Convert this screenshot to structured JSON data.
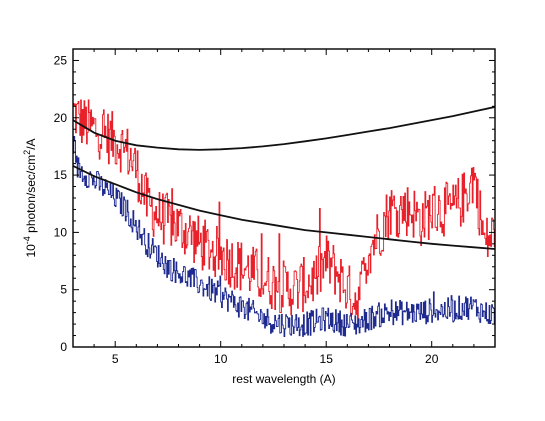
{
  "chart_data": {
    "type": "line",
    "title": "",
    "xlabel": "rest wavelength (A)",
    "ylabel": {
      "prefix": "10",
      "exp": "-4",
      "middle": " photon/sec/cm",
      "exp2": "2",
      "suffix": "/A"
    },
    "xlim": [
      3,
      23
    ],
    "ylim": [
      0,
      26
    ],
    "xticks": [
      5,
      10,
      15,
      20
    ],
    "yticks": [
      0,
      5,
      10,
      15,
      20,
      25
    ],
    "grid": false,
    "legend": "none",
    "series": [
      {
        "color": "#e8202a",
        "style": "step-noisy",
        "x": [
          3,
          3.5,
          4,
          4.5,
          5,
          5.5,
          6,
          6.5,
          7,
          7.5,
          8,
          8.5,
          9,
          9.5,
          10,
          10.5,
          11,
          11.5,
          12,
          12.5,
          13,
          13.5,
          14,
          14.5,
          15,
          15.5,
          16,
          16.5,
          17,
          17.5,
          18,
          18.5,
          19,
          19.5,
          20,
          20.5,
          21,
          21.5,
          22,
          22.5,
          23
        ],
        "y": [
          20.5,
          19.5,
          19,
          18.5,
          18,
          17.2,
          15.5,
          12.5,
          11.5,
          11,
          10.5,
          10,
          9,
          8.5,
          8,
          7.5,
          7,
          6.5,
          6,
          5.5,
          5.2,
          5,
          5.5,
          6,
          7.5,
          6.5,
          5,
          4,
          8.5,
          10,
          12,
          12,
          12,
          11,
          12,
          12,
          12,
          13,
          15,
          9,
          10
        ],
        "noise": 2.4
      },
      {
        "color": "#1f2a8f",
        "style": "step-noisy",
        "x": [
          3,
          3.5,
          4,
          4.5,
          5,
          5.5,
          6,
          6.5,
          7,
          7.5,
          8,
          8.5,
          9,
          9.5,
          10,
          10.5,
          11,
          11.5,
          12,
          12.5,
          13,
          13.5,
          14,
          14.5,
          15,
          15.5,
          16,
          16.5,
          17,
          17.5,
          18,
          18.5,
          19,
          19.5,
          20,
          20.5,
          21,
          21.5,
          22,
          22.5,
          23
        ],
        "y": [
          16,
          15.2,
          14.5,
          13.8,
          13,
          12,
          10.5,
          9,
          8,
          7,
          6.5,
          6,
          5.5,
          5,
          4.5,
          4,
          3.5,
          3,
          2.5,
          2.2,
          2,
          2,
          2,
          2.2,
          2.5,
          2.2,
          2,
          2,
          2.5,
          2.8,
          3,
          3,
          3,
          3,
          3.2,
          3.2,
          3.2,
          3.5,
          3.5,
          3,
          2.8
        ],
        "noise": 1.1
      },
      {
        "color": "#111111",
        "style": "smooth",
        "x": [
          3,
          4,
          5,
          6,
          7,
          8,
          9,
          10,
          11,
          12,
          13,
          14,
          15,
          16,
          17,
          18,
          19,
          20,
          21,
          22,
          23
        ],
        "y": [
          19.8,
          18.7,
          18.0,
          17.6,
          17.4,
          17.25,
          17.2,
          17.25,
          17.35,
          17.5,
          17.7,
          17.95,
          18.2,
          18.5,
          18.8,
          19.1,
          19.45,
          19.8,
          20.15,
          20.55,
          20.95
        ]
      },
      {
        "color": "#111111",
        "style": "smooth",
        "x": [
          3,
          4,
          5,
          6,
          7,
          8,
          9,
          10,
          11,
          12,
          13,
          14,
          15,
          16,
          17,
          18,
          19,
          20,
          21,
          22,
          23
        ],
        "y": [
          15.8,
          14.9,
          14.2,
          13.5,
          12.9,
          12.4,
          11.9,
          11.5,
          11.1,
          10.8,
          10.5,
          10.2,
          10.0,
          9.8,
          9.6,
          9.4,
          9.2,
          9.0,
          8.85,
          8.7,
          8.55
        ]
      }
    ]
  }
}
